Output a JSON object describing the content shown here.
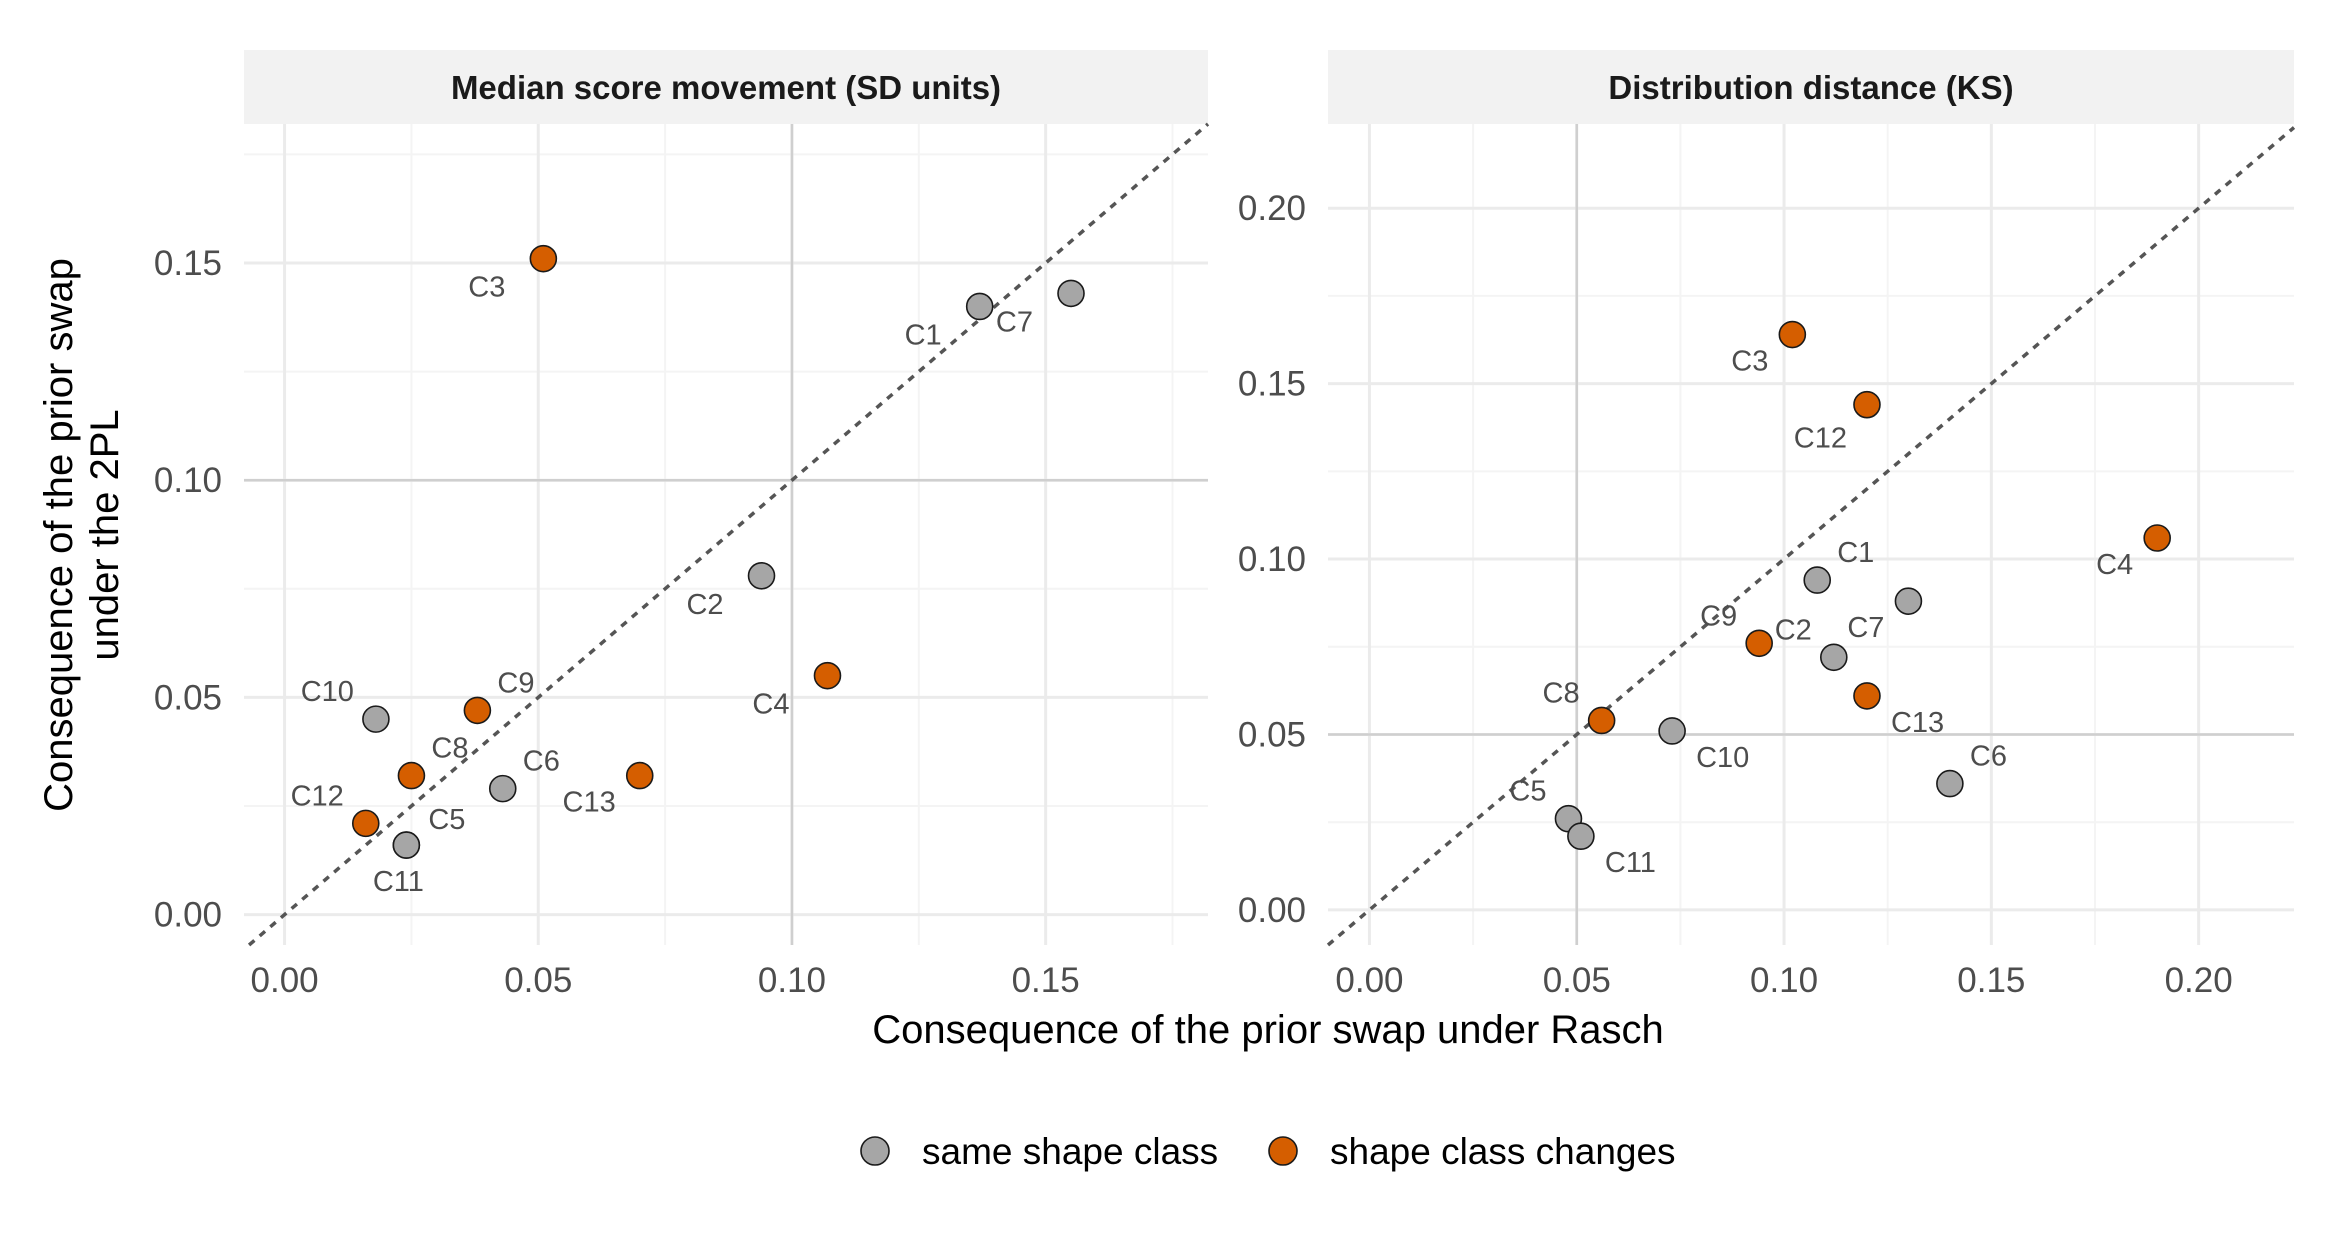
{
  "chart_data": {
    "type": "scatter",
    "xlabel": "Consequence of the prior swap under Rasch",
    "ylabel": [
      "Consequence of the prior swap",
      "under the 2PL"
    ],
    "reference_line": "y = x (dashed)",
    "legend": {
      "position": "bottom",
      "entries": [
        {
          "key": "same",
          "label": "same shape class",
          "color": "#a6a6a6"
        },
        {
          "key": "changes",
          "label": "shape class changes",
          "color": "#d55e00"
        }
      ]
    },
    "panels": [
      {
        "title": "Median score movement (SD units)",
        "xlim": [
          -0.008,
          0.182
        ],
        "ylim": [
          -0.007,
          0.182
        ],
        "xticks": [
          0,
          0.05,
          0.1,
          0.15
        ],
        "xtick_labels": [
          "0.00",
          "0.05",
          "0.10",
          "0.15"
        ],
        "yticks": [
          0,
          0.05,
          0.1,
          0.15
        ],
        "ytick_labels": [
          "0.00",
          "0.05",
          "0.10",
          "0.15"
        ],
        "ref_x": 0.1,
        "ref_y": 0.1,
        "points": [
          {
            "label": "C1",
            "x": 0.137,
            "y": 0.14,
            "class": "same",
            "label_pos": "left"
          },
          {
            "label": "C2",
            "x": 0.094,
            "y": 0.078,
            "class": "same",
            "label_pos": "left"
          },
          {
            "label": "C3",
            "x": 0.051,
            "y": 0.151,
            "class": "changes",
            "label_pos": "left"
          },
          {
            "label": "C4",
            "x": 0.107,
            "y": 0.055,
            "class": "changes",
            "label_pos": "left"
          },
          {
            "label": "C5",
            "x": 0.024,
            "y": 0.016,
            "class": "same",
            "label_pos": "right"
          },
          {
            "label": "C6",
            "x": 0.043,
            "y": 0.029,
            "class": "same",
            "label_pos": "upright"
          },
          {
            "label": "C7",
            "x": 0.155,
            "y": 0.143,
            "class": "same",
            "label_pos": "left"
          },
          {
            "label": "C8",
            "x": 0.025,
            "y": 0.032,
            "class": "changes",
            "label_pos": "upright"
          },
          {
            "label": "C9",
            "x": 0.038,
            "y": 0.047,
            "class": "changes",
            "label_pos": "upright"
          },
          {
            "label": "C10",
            "x": 0.018,
            "y": 0.045,
            "class": "same",
            "label_pos": "upleft"
          },
          {
            "label": "C11",
            "x": 0.024,
            "y": 0.016,
            "class": "same",
            "label_pos": "belowleft"
          },
          {
            "label": "C12",
            "x": 0.016,
            "y": 0.021,
            "class": "changes",
            "label_pos": "upleft"
          },
          {
            "label": "C13",
            "x": 0.07,
            "y": 0.032,
            "class": "changes",
            "label_pos": "downleft"
          }
        ]
      },
      {
        "title": "Distribution distance (KS)",
        "xlim": [
          -0.01,
          0.223
        ],
        "ylim": [
          -0.01,
          0.224
        ],
        "xticks": [
          0,
          0.05,
          0.1,
          0.15,
          0.2
        ],
        "xtick_labels": [
          "0.00",
          "0.05",
          "0.10",
          "0.15",
          "0.20"
        ],
        "yticks": [
          0,
          0.05,
          0.1,
          0.15,
          0.2
        ],
        "ytick_labels": [
          "0.00",
          "0.05",
          "0.10",
          "0.15",
          "0.20"
        ],
        "ref_x": 0.05,
        "ref_y": 0.05,
        "points": [
          {
            "label": "C1",
            "x": 0.108,
            "y": 0.094,
            "class": "same",
            "label_pos": "upright"
          },
          {
            "label": "C2",
            "x": 0.112,
            "y": 0.072,
            "class": "same",
            "label_pos": "upleft"
          },
          {
            "label": "C3",
            "x": 0.102,
            "y": 0.164,
            "class": "changes",
            "label_pos": "downleft"
          },
          {
            "label": "C4",
            "x": 0.19,
            "y": 0.106,
            "class": "changes",
            "label_pos": "downleft"
          },
          {
            "label": "C5",
            "x": 0.048,
            "y": 0.026,
            "class": "same",
            "label_pos": "upleft"
          },
          {
            "label": "C6",
            "x": 0.14,
            "y": 0.036,
            "class": "same",
            "label_pos": "upright"
          },
          {
            "label": "C7",
            "x": 0.13,
            "y": 0.088,
            "class": "same",
            "label_pos": "downleft"
          },
          {
            "label": "C8",
            "x": 0.056,
            "y": 0.054,
            "class": "changes",
            "label_pos": "upleft"
          },
          {
            "label": "C9",
            "x": 0.094,
            "y": 0.076,
            "class": "changes",
            "label_pos": "upleft"
          },
          {
            "label": "C10",
            "x": 0.073,
            "y": 0.051,
            "class": "same",
            "label_pos": "downright"
          },
          {
            "label": "C11",
            "x": 0.051,
            "y": 0.021,
            "class": "same",
            "label_pos": "downright"
          },
          {
            "label": "C12",
            "x": 0.12,
            "y": 0.144,
            "class": "changes",
            "label_pos": "down"
          },
          {
            "label": "C13",
            "x": 0.12,
            "y": 0.061,
            "class": "changes",
            "label_pos": "downright"
          }
        ]
      }
    ]
  }
}
